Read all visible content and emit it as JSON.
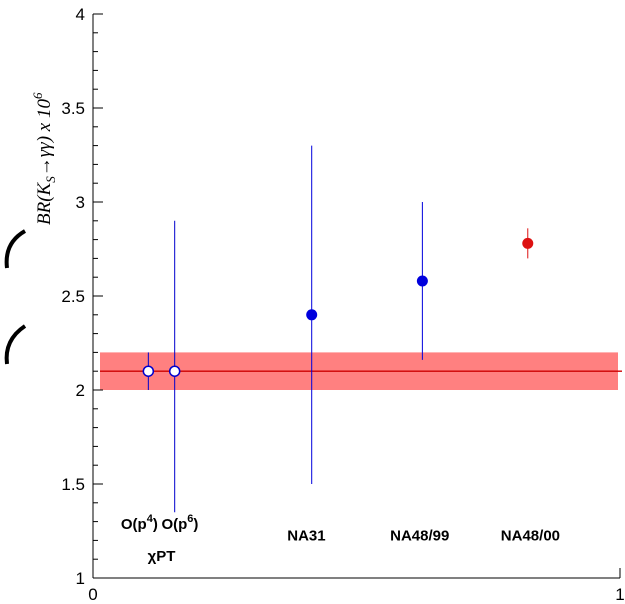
{
  "chart_data": {
    "type": "scatter",
    "title": "",
    "xlabel": "",
    "ylabel": "BR(K_S→γγ) x 10^6",
    "ylabel_parts": {
      "pre": "BR(K",
      "sub": "S",
      "mid": "→γγ) x 10",
      "sup": "6"
    },
    "xlim": [
      0,
      1
    ],
    "ylim": [
      1,
      4
    ],
    "x_ticks": [
      "0",
      "1"
    ],
    "y_ticks": [
      {
        "value": 1,
        "label": "1"
      },
      {
        "value": 1.5,
        "label": "1.5"
      },
      {
        "value": 2,
        "label": "2"
      },
      {
        "value": 2.5,
        "label": "2.5"
      },
      {
        "value": 3,
        "label": "3"
      },
      {
        "value": 3.5,
        "label": "3.5"
      },
      {
        "value": 4,
        "label": "4"
      }
    ],
    "band": {
      "center": 2.1,
      "low": 2.0,
      "high": 2.2,
      "color": "#ff8080",
      "line_color": "#cc0000"
    },
    "series": [
      {
        "marker": "open-circle",
        "color": "#0000cc",
        "points": [
          {
            "x": 0.105,
            "y": 2.1,
            "err_low": 2.0,
            "err_high": 2.2
          },
          {
            "x": 0.155,
            "y": 2.1,
            "err_low": 1.35,
            "err_high": 2.9
          }
        ]
      },
      {
        "marker": "filled-circle",
        "color": "#0000dd",
        "points": [
          {
            "x": 0.415,
            "y": 2.4,
            "err_low": 1.5,
            "err_high": 3.3
          },
          {
            "x": 0.625,
            "y": 2.58,
            "err_low": 2.16,
            "err_high": 3.0
          }
        ]
      },
      {
        "marker": "filled-circle",
        "color": "#dd1111",
        "points": [
          {
            "x": 0.825,
            "y": 2.78,
            "err_low": 2.7,
            "err_high": 2.86
          }
        ]
      }
    ],
    "category_labels": [
      {
        "x": 0.088,
        "y": 1.26,
        "base": "O(p",
        "sup": "4",
        "tail": ")"
      },
      {
        "x": 0.165,
        "y": 1.26,
        "base": "O(p",
        "sup": "6",
        "tail": ")"
      },
      {
        "x": 0.13,
        "y": 1.09,
        "text": "χPT"
      },
      {
        "x": 0.405,
        "y": 1.2,
        "text": "NA31"
      },
      {
        "x": 0.62,
        "y": 1.2,
        "text": "NA48/99"
      },
      {
        "x": 0.83,
        "y": 1.2,
        "text": "NA48/00"
      }
    ]
  }
}
